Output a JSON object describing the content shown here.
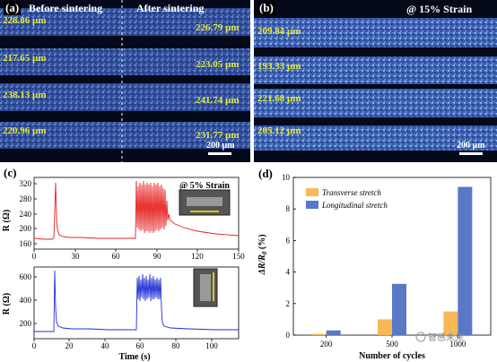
{
  "colors": {
    "micro_bg": "#050a1a",
    "micro_stripe": "#3a5fb5",
    "micro_label": "#e3e73a",
    "red_trace": "#e62020",
    "blue_trace": "#1f2fd6",
    "transverse": "#f7b955",
    "longitudinal": "#5b78c8"
  },
  "panel_a": {
    "tag": "(a)",
    "left_title": "Before sintering",
    "right_title": "After sintering",
    "left_widths": [
      "228.86 µm",
      "217.65 µm",
      "238.13 µm",
      "220.96 µm"
    ],
    "right_widths": [
      "226.79 µm",
      "223.05 µm",
      "241.74 µm",
      "231.77 µm"
    ],
    "scale_label": "200 µm"
  },
  "panel_b": {
    "tag": "(b)",
    "title": "@ 15% Strain",
    "widths": [
      "209.84 µm",
      "193.33 µm",
      "221.68 µm",
      "205.12 µm"
    ],
    "scale_label": "200 µm"
  },
  "panel_c": {
    "tag": "(c)",
    "top_annotation": "@ 5% Strain",
    "ylabel": "R (Ω)",
    "xlabel": "Time (s)",
    "top_yticks": [
      "320",
      "280",
      "240",
      "200",
      "160"
    ],
    "top_xticks": [
      "0",
      "30",
      "60",
      "90",
      "120",
      "150"
    ],
    "bottom_yticks": [
      "600",
      "400",
      "200"
    ],
    "bottom_xticks": [
      "0",
      "20",
      "40",
      "60",
      "80",
      "100"
    ]
  },
  "chart_data": {
    "type": "bar",
    "tag": "(d)",
    "categories": [
      "200",
      "500",
      "1000"
    ],
    "series": [
      {
        "name": "Transverse stretch",
        "values": [
          0.08,
          1.0,
          1.5
        ]
      },
      {
        "name": "Longitudinal stretch",
        "values": [
          0.3,
          3.25,
          9.4
        ]
      }
    ],
    "xlabel": "Number of cycles",
    "ylabel": "ΔR/R",
    "ylabel_sub": "0",
    "ylabel_unit": " (%)",
    "ylim": [
      0,
      10
    ],
    "yticks": [
      "0",
      "2",
      "4",
      "6",
      "8",
      "10"
    ],
    "legend_position": "top-left"
  },
  "watermark": "智感未来"
}
